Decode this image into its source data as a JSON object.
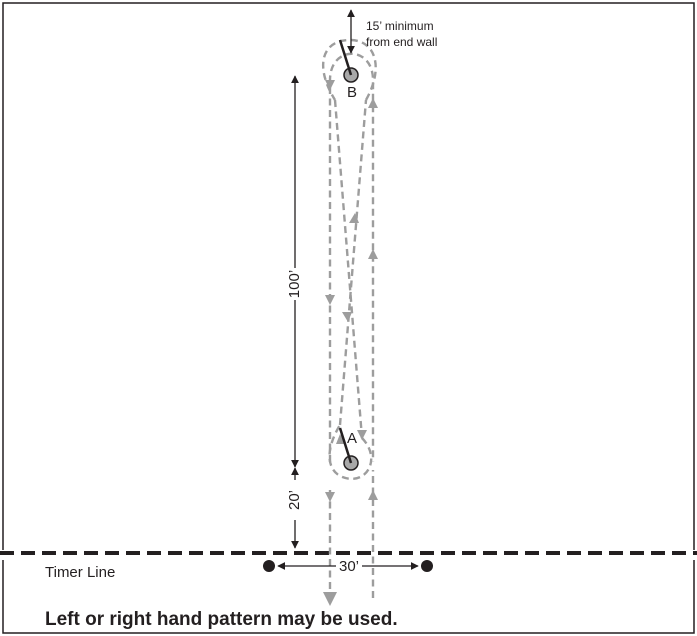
{
  "labels": {
    "end_wall_note_line1": "15’ minimum",
    "end_wall_note_line2": "from end wall",
    "pole_b": "B",
    "pole_a": "A",
    "dimension_100": "100’",
    "dimension_20": "20’",
    "dimension_30": "30’",
    "timer_line": "Timer Line",
    "footer_note": "Left or right hand pattern may be used."
  },
  "colors": {
    "ink": "#231f20",
    "path": "#9d9d9d",
    "pole_fill": "#a8a8a8",
    "background": "#ffffff"
  }
}
